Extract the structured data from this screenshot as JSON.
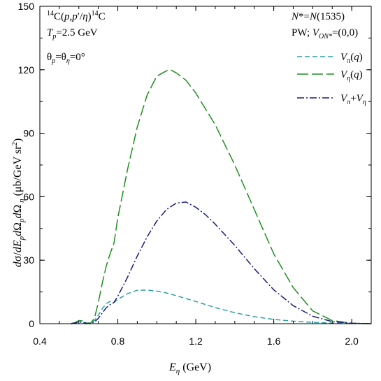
{
  "chart_data": {
    "type": "line",
    "xlabel": "E_η (GeV)",
    "ylabel": "dσ/dE_p dΩ_p dΩ_η (μb/GeV sr²)",
    "xlim": [
      0.4,
      2.1
    ],
    "ylim": [
      0,
      150
    ],
    "xticks": [
      "0.4",
      "0.8",
      "1.2",
      "1.6",
      "2.0"
    ],
    "yticks": [
      "0",
      "30",
      "60",
      "90",
      "120",
      "150"
    ],
    "legend_position": "top-right",
    "annotations": {
      "reaction": "¹⁴C(p,p′η)¹⁴C",
      "energy": "T_p=2.5 GeV",
      "angles": "θ_p=θ_η=0°",
      "resonance": "N*=N(1535)",
      "model": "PW; V_ON*=(0,0)"
    },
    "series": [
      {
        "name": "V_π(q)",
        "color": "#2aa1a1",
        "dash": "short",
        "x": [
          0.56,
          0.58,
          0.6,
          0.62,
          0.64,
          0.66,
          0.68,
          0.7,
          0.72,
          0.74,
          0.76,
          0.78,
          0.8,
          0.85,
          0.9,
          0.95,
          1.0,
          1.05,
          1.1,
          1.2,
          1.3,
          1.4,
          1.5,
          1.6,
          1.7,
          1.8,
          1.9,
          2.0,
          2.1
        ],
        "y": [
          0,
          0.5,
          1.5,
          1.3,
          0.3,
          0.3,
          1.5,
          4,
          7,
          9.5,
          10.5,
          10,
          11.5,
          14.2,
          15.8,
          15.9,
          15.4,
          14.5,
          13.2,
          10.5,
          7.6,
          5.2,
          3.3,
          2.0,
          1.2,
          0.6,
          0.3,
          0.1,
          0
        ]
      },
      {
        "name": "V_η(q)",
        "color": "#1f8f1f",
        "dash": "long",
        "x": [
          0.56,
          0.58,
          0.6,
          0.62,
          0.64,
          0.66,
          0.68,
          0.7,
          0.72,
          0.74,
          0.76,
          0.78,
          0.8,
          0.85,
          0.9,
          0.95,
          1.0,
          1.05,
          1.07,
          1.1,
          1.15,
          1.2,
          1.3,
          1.4,
          1.5,
          1.6,
          1.7,
          1.8,
          1.9,
          2.0,
          2.1
        ],
        "y": [
          0,
          0.5,
          1.5,
          1.2,
          0.2,
          0.3,
          2.5,
          10,
          19,
          27,
          33,
          38,
          50,
          73,
          93,
          108,
          117,
          119.5,
          120,
          118.5,
          115,
          109,
          94,
          75,
          54,
          33,
          17,
          6,
          1.5,
          0.2,
          0
        ]
      },
      {
        "name": "V_π+V_η",
        "color": "#1a1a80",
        "dash": "dashdot",
        "x": [
          0.56,
          0.58,
          0.6,
          0.62,
          0.64,
          0.66,
          0.68,
          0.7,
          0.72,
          0.74,
          0.76,
          0.78,
          0.8,
          0.85,
          0.9,
          0.95,
          1.0,
          1.05,
          1.1,
          1.15,
          1.2,
          1.25,
          1.3,
          1.4,
          1.5,
          1.6,
          1.7,
          1.8,
          1.9,
          2.0,
          2.1
        ],
        "y": [
          0,
          0.3,
          0.8,
          0.6,
          0.1,
          0.2,
          0.8,
          2.5,
          5,
          7.5,
          9,
          10,
          13,
          22,
          32,
          41,
          48.5,
          54,
          57,
          57.5,
          55,
          51.5,
          47,
          37,
          26,
          16,
          8.5,
          3.5,
          1,
          0.2,
          0
        ]
      }
    ]
  }
}
